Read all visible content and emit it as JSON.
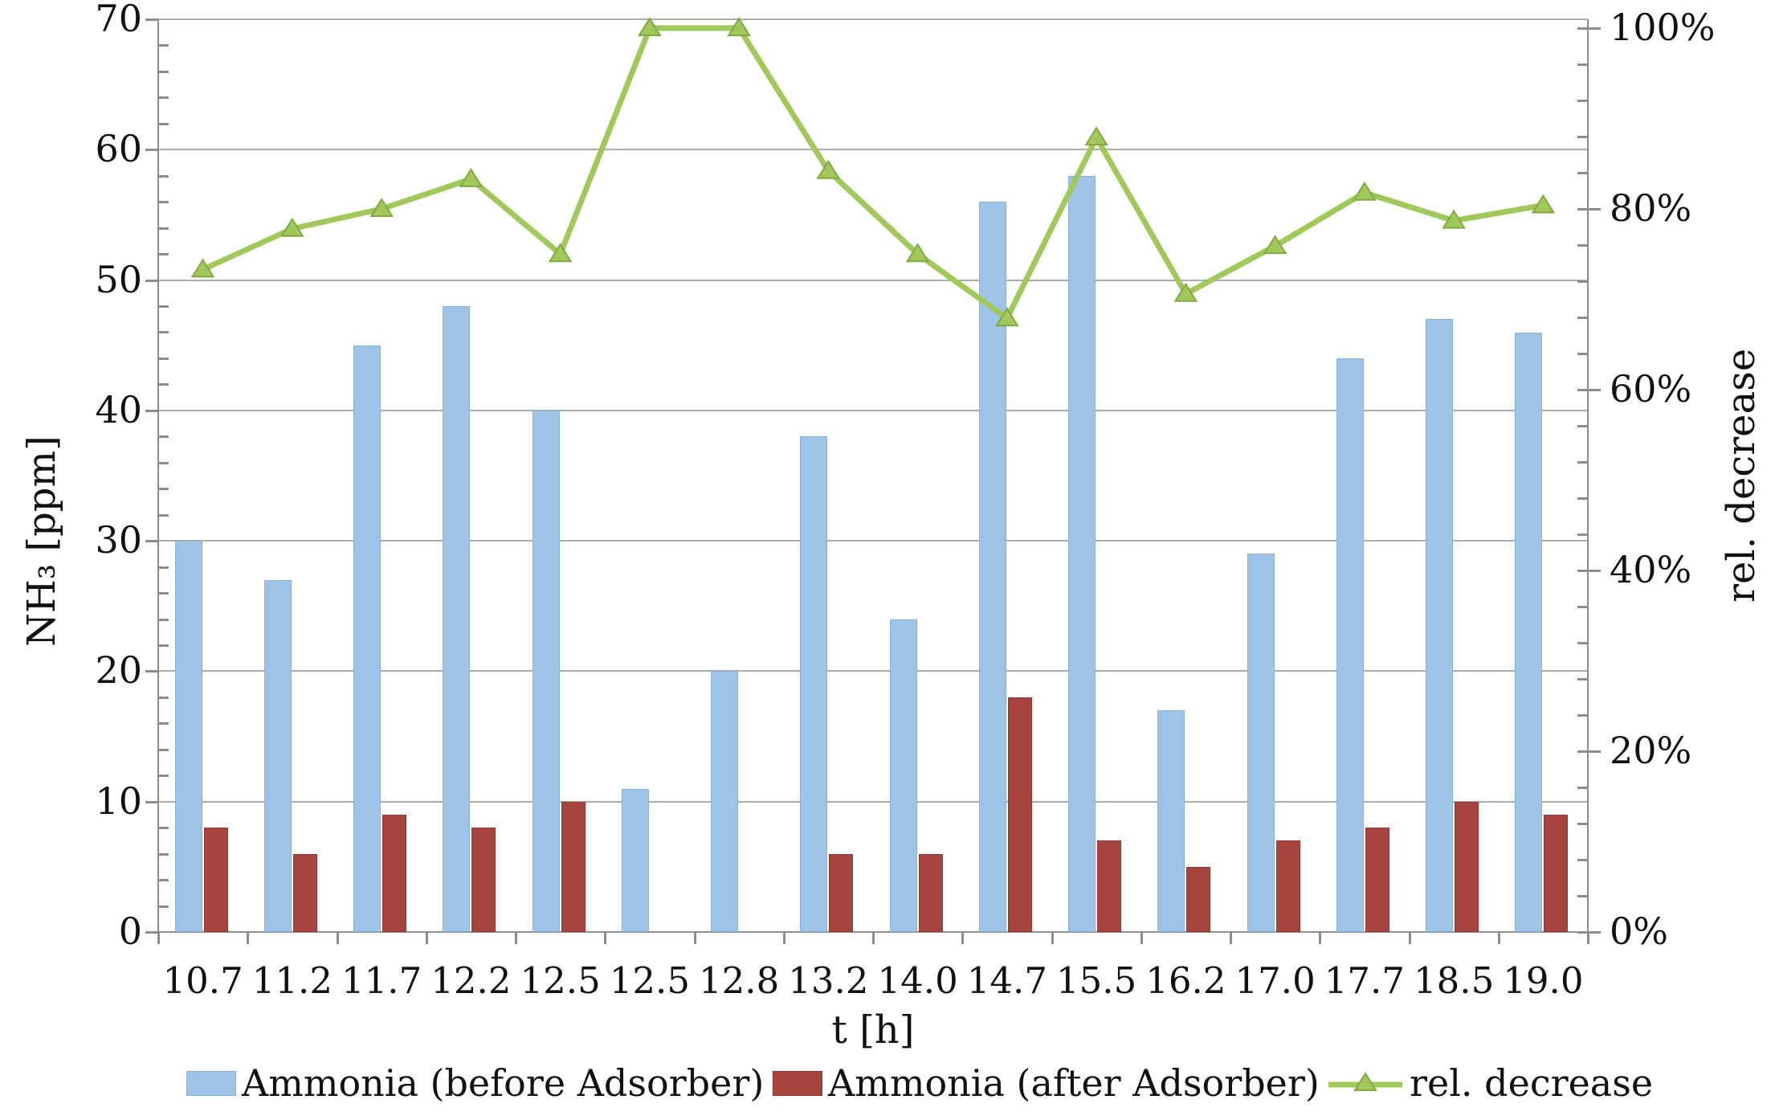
{
  "chart_data": {
    "type": "combo bar+line",
    "title": "",
    "categories": [
      "10.7",
      "11.2",
      "11.7",
      "12.2",
      "12.5",
      "12.5",
      "12.8",
      "13.2",
      "14.0",
      "14.7",
      "15.5",
      "16.2",
      "17.0",
      "17.7",
      "18.5",
      "19.0"
    ],
    "series": [
      {
        "name": "Ammonia (before Adsorber)",
        "type": "bar",
        "axis": "left",
        "color": "#9DC3E6",
        "border": "#8AB2D8",
        "values": [
          30,
          27,
          45,
          48,
          40,
          11,
          20,
          38,
          24,
          56,
          58,
          17,
          29,
          44,
          47,
          46
        ]
      },
      {
        "name": "Ammonia (after Adsorber)",
        "type": "bar",
        "axis": "left",
        "color": "#A6443F",
        "border": "#93372F",
        "values": [
          8,
          6,
          9,
          8,
          10,
          0,
          0,
          6,
          6,
          18,
          7,
          5,
          7,
          8,
          10,
          9
        ]
      },
      {
        "name": "rel. decrease",
        "type": "line",
        "axis": "right",
        "color": "#A0C85A",
        "marker_stroke": "#82A842",
        "marker": "triangle",
        "values_pct": [
          73.3,
          77.8,
          80.0,
          83.3,
          75.0,
          100.0,
          100.0,
          84.2,
          75.0,
          67.9,
          87.9,
          70.6,
          75.9,
          81.8,
          78.7,
          80.4
        ]
      }
    ],
    "left_axis": {
      "label": "NH₃ [ppm]",
      "min": 0,
      "max": 70,
      "major_step": 10,
      "minor_step": 2,
      "tick_labels": [
        "0",
        "10",
        "20",
        "30",
        "40",
        "50",
        "60",
        "70"
      ],
      "tick_values": [
        0,
        10,
        20,
        30,
        40,
        50,
        60,
        70
      ]
    },
    "right_axis": {
      "label": "rel. decrease",
      "min": 0,
      "max": 100,
      "major_step": 20,
      "minor_step": 4,
      "tick_labels": [
        "0%",
        "20%",
        "40%",
        "60%",
        "80%",
        "100%"
      ],
      "tick_values": [
        0,
        20,
        40,
        60,
        80,
        100
      ]
    },
    "x_axis": {
      "label": "t [h]"
    },
    "legend_position": "bottom",
    "grid": true
  }
}
